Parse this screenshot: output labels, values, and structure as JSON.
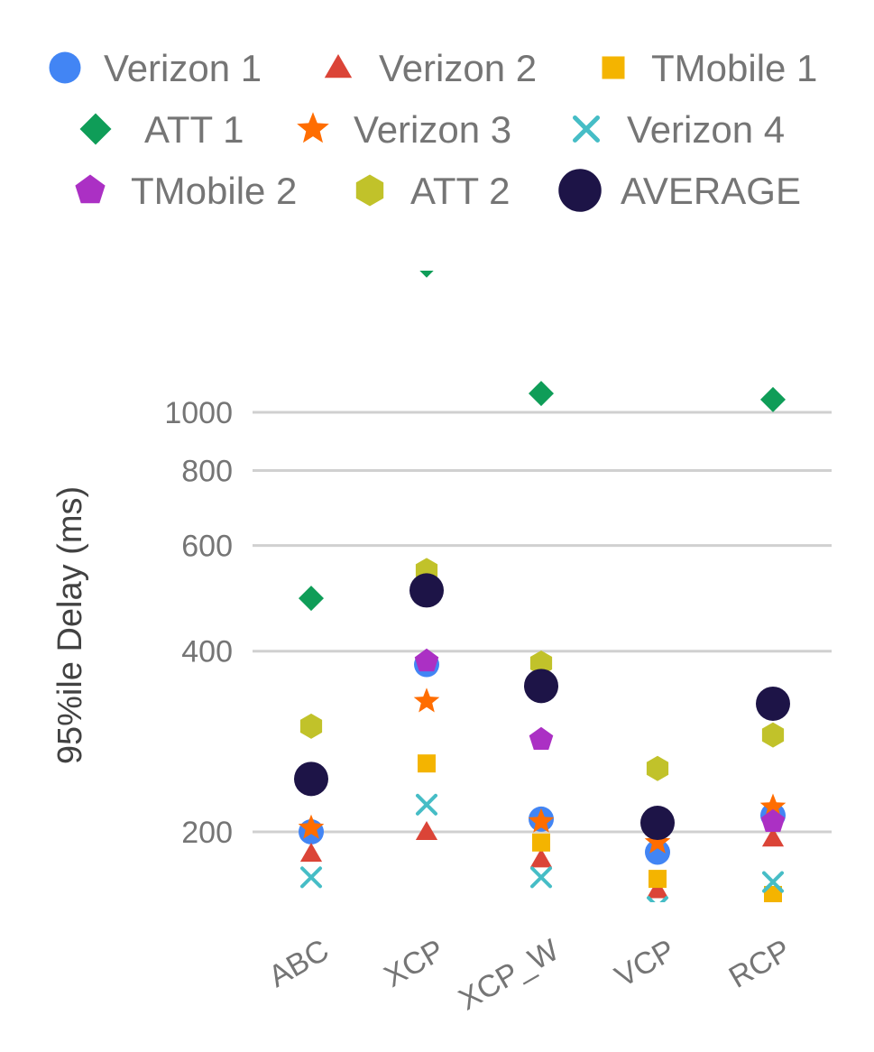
{
  "chart_data": {
    "type": "scatter",
    "ylabel": "95%ile Delay (ms)",
    "y_scale": "log",
    "ylim": [
      150,
      2000
    ],
    "y_ticks": [
      "200",
      "400",
      "600",
      "800",
      "1000"
    ],
    "y_tick_values": [
      200,
      400,
      600,
      800,
      1000
    ],
    "grid": true,
    "legend_position": "top",
    "categories": [
      "ABC",
      "XCP",
      "XCP_W",
      "VCP",
      "RCP"
    ],
    "series": [
      {
        "name": "Verizon 1",
        "marker": "circle",
        "color": "#4285f4",
        "values": [
          200,
          380,
          210,
          185,
          213
        ]
      },
      {
        "name": "Verizon 2",
        "marker": "triangle",
        "color": "#db4437",
        "values": [
          184,
          200,
          180,
          160,
          195
        ]
      },
      {
        "name": "TMobile 1",
        "marker": "square",
        "color": "#f4b400",
        "values": [
          null,
          260,
          192,
          167,
          157
        ]
      },
      {
        "name": "ATT 1",
        "marker": "diamond",
        "color": "#0f9d58",
        "values": [
          490,
          1760,
          1075,
          null,
          1050
        ]
      },
      {
        "name": "Verizon 3",
        "marker": "star",
        "color": "#ff6d00",
        "values": [
          203,
          330,
          208,
          192,
          220
        ]
      },
      {
        "name": "Verizon 4",
        "marker": "x",
        "color": "#46bdc6",
        "values": [
          168,
          222,
          168,
          150,
          165
        ]
      },
      {
        "name": "TMobile 2",
        "marker": "pentagon",
        "color": "#ab30c4",
        "values": [
          240,
          385,
          285,
          null,
          208
        ]
      },
      {
        "name": "ATT 2",
        "marker": "hexagon",
        "color": "#c1c22a",
        "values": [
          300,
          545,
          382,
          255,
          290
        ]
      },
      {
        "name": "AVERAGE",
        "marker": "bigcircle",
        "color": "#1d1447",
        "values": [
          245,
          505,
          350,
          207,
          327
        ]
      }
    ]
  }
}
